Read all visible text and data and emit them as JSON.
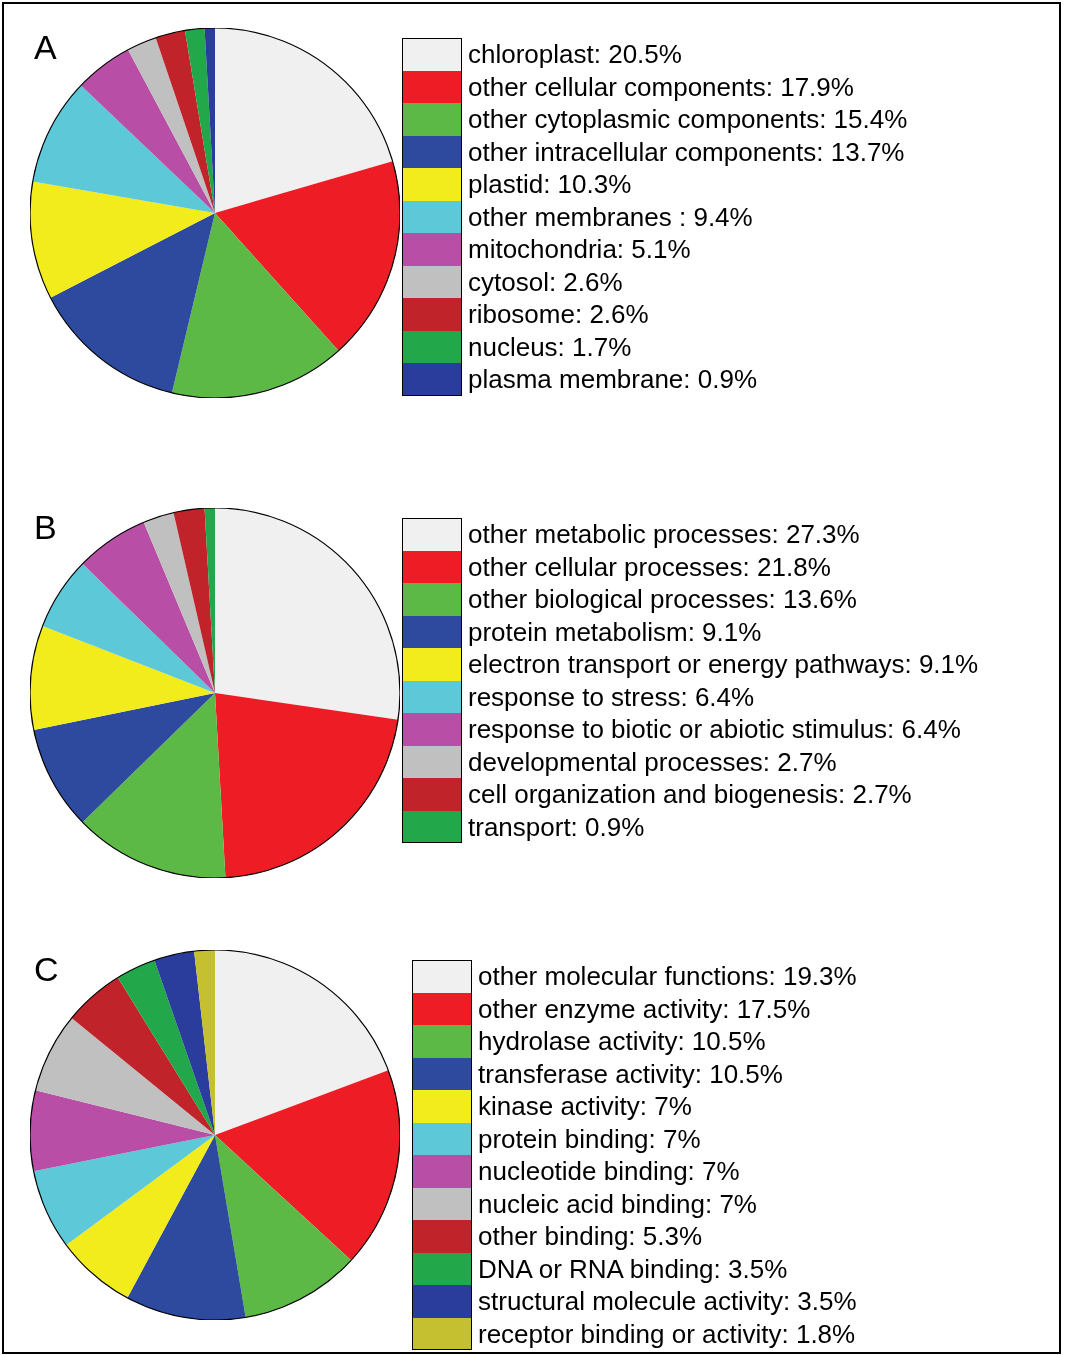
{
  "chart_data": [
    {
      "type": "pie",
      "title": "A",
      "legend": "right",
      "categories": [
        "chloroplast: 20.5%",
        "other cellular components: 17.9%",
        "other cytoplasmic components: 15.4%",
        "other intracellular components: 13.7%",
        "plastid: 10.3%",
        "other membranes : 9.4%",
        "mitochondria: 5.1%",
        "cytosol: 2.6%",
        "ribosome: 2.6%",
        "nucleus: 1.7%",
        "plasma membrane: 0.9%"
      ],
      "values": [
        20.5,
        17.9,
        15.4,
        13.7,
        10.3,
        9.4,
        5.1,
        2.6,
        2.6,
        1.7,
        0.9
      ],
      "colors": [
        "#f0f0f0",
        "#ee1c24",
        "#5cb946",
        "#2e4a9e",
        "#f2ec1c",
        "#5cc8d8",
        "#b84ea6",
        "#c0c0c0",
        "#c0242a",
        "#22a84a",
        "#2a3c9c"
      ]
    },
    {
      "type": "pie",
      "title": "B",
      "legend": "right",
      "categories": [
        "other metabolic processes: 27.3%",
        "other cellular processes: 21.8%",
        "other biological processes: 13.6%",
        "protein metabolism: 9.1%",
        "electron transport or energy pathways: 9.1%",
        "response to stress: 6.4%",
        "response to biotic or abiotic stimulus: 6.4%",
        "developmental processes: 2.7%",
        "cell organization and biogenesis: 2.7%",
        "transport: 0.9%"
      ],
      "values": [
        27.3,
        21.8,
        13.6,
        9.1,
        9.1,
        6.4,
        6.4,
        2.7,
        2.7,
        0.9
      ],
      "colors": [
        "#f0f0f0",
        "#ee1c24",
        "#5cb946",
        "#2e4a9e",
        "#f2ec1c",
        "#5cc8d8",
        "#b84ea6",
        "#c0c0c0",
        "#c0242a",
        "#22a84a"
      ]
    },
    {
      "type": "pie",
      "title": "C",
      "legend": "right",
      "categories": [
        "other molecular functions: 19.3%",
        "other enzyme activity: 17.5%",
        "hydrolase activity: 10.5%",
        "transferase activity: 10.5%",
        "kinase activity: 7%",
        "protein binding: 7%",
        "nucleotide binding: 7%",
        "nucleic acid binding: 7%",
        "other binding: 5.3%",
        "DNA or RNA binding: 3.5%",
        "structural molecule activity: 3.5%",
        "receptor binding or activity: 1.8%"
      ],
      "values": [
        19.3,
        17.5,
        10.5,
        10.5,
        7,
        7,
        7,
        7,
        5.3,
        3.5,
        3.5,
        1.8
      ],
      "colors": [
        "#f0f0f0",
        "#ee1c24",
        "#5cb946",
        "#2e4a9e",
        "#f2ec1c",
        "#5cc8d8",
        "#b84ea6",
        "#c0c0c0",
        "#c0242a",
        "#22a84a",
        "#2a3c9c",
        "#c4c030"
      ]
    }
  ]
}
